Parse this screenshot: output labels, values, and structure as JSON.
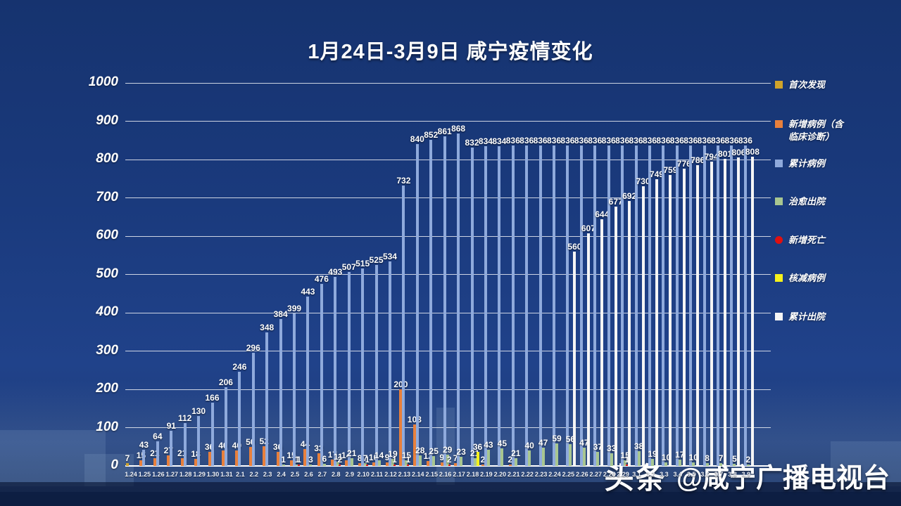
{
  "page": {
    "title": "1月24日-3月9日 咸宁疫情变化"
  },
  "watermark": {
    "brand": "头条",
    "handle": "@咸宁广播电视台"
  },
  "colors": {
    "background": "#1a3a7d",
    "grid": "#ffffff",
    "text": "#ffffff"
  },
  "chart_data": {
    "type": "bar",
    "title": "1月24日-3月9日 咸宁疫情变化",
    "xlabel": "",
    "ylabel": "",
    "ylim": [
      0,
      1000
    ],
    "yticks": [
      1000,
      900,
      800,
      700,
      600,
      500,
      400,
      300,
      200,
      100,
      0
    ],
    "grid": "horizontal",
    "legend_position": "right",
    "series": [
      {
        "key": "first",
        "label": "首次发现",
        "color": "#CFA32B",
        "shape": "square"
      },
      {
        "key": "new",
        "label": "新增病例（含临床诊断）",
        "color": "#E8803C",
        "shape": "square"
      },
      {
        "key": "cum",
        "label": "累计病例",
        "color": "#8FAADC",
        "shape": "square"
      },
      {
        "key": "cured",
        "label": "治愈出院",
        "color": "#A8C690",
        "shape": "square"
      },
      {
        "key": "death",
        "label": "新增死亡",
        "color": "#E01010",
        "shape": "round"
      },
      {
        "key": "reduce",
        "label": "核减病例",
        "color": "#F5F11C",
        "shape": "square"
      },
      {
        "key": "disch",
        "label": "累计出院",
        "color": "#F5F5F5",
        "shape": "square"
      }
    ],
    "points": [
      {
        "date": "1.24",
        "first": 7
      },
      {
        "date": "1.25",
        "new": 15,
        "cum": 43
      },
      {
        "date": "1.26",
        "new": 21,
        "cum": 64
      },
      {
        "date": "1.27",
        "new": 27,
        "cum": 91
      },
      {
        "date": "1.28",
        "new": 21,
        "cum": 112
      },
      {
        "date": "1.29",
        "new": 18,
        "cum": 130
      },
      {
        "date": "1.30",
        "new": 36,
        "cum": 166
      },
      {
        "date": "1.31",
        "new": 40,
        "cum": 206
      },
      {
        "date": "2.1",
        "new": 40,
        "cum": 246
      },
      {
        "date": "2.2",
        "new": 50,
        "cum": 296
      },
      {
        "date": "2.3",
        "new": 52,
        "cum": 348
      },
      {
        "date": "2.4",
        "new": 36,
        "cum": 384,
        "cured": 1
      },
      {
        "date": "2.5",
        "new": 15,
        "cum": 399,
        "cured": 1,
        "death": 1
      },
      {
        "date": "2.6",
        "new": 44,
        "cum": 443,
        "cured": 3
      },
      {
        "date": "2.7",
        "new": 33,
        "cum": 476,
        "cured": 6
      },
      {
        "date": "2.8",
        "new": 17,
        "cum": 493,
        "cured": 11,
        "death": 2
      },
      {
        "date": "2.9",
        "new": 14,
        "cum": 507,
        "cured": 21
      },
      {
        "date": "2.10",
        "new": 8,
        "cum": 515,
        "cured": 7,
        "death": 1
      },
      {
        "date": "2.11",
        "new": 10,
        "cum": 525,
        "cured": 14
      },
      {
        "date": "2.12",
        "new": 9,
        "cum": 534,
        "cured": 19,
        "death": 1
      },
      {
        "date": "2.13",
        "new": 200,
        "cum": 732,
        "cured": 15,
        "death": 1
      },
      {
        "date": "2.14",
        "new": 108,
        "cum": 840,
        "cured": 28
      },
      {
        "date": "2.15",
        "new": 12,
        "cum": 852,
        "cured": 25
      },
      {
        "date": "2.16",
        "new": 9,
        "cum": 861,
        "cured": 29,
        "death": 2
      },
      {
        "date": "2.17",
        "new": 7,
        "cum": 868,
        "cured": 23
      },
      {
        "date": "2.18",
        "cum": 832,
        "cured": 21,
        "reduce": 36
      },
      {
        "date": "2.19",
        "new": 2,
        "cum": 834,
        "cured": 43
      },
      {
        "date": "2.20",
        "cum": 834,
        "cured": 45
      },
      {
        "date": "2.21",
        "new": 2,
        "cum": 836,
        "cured": 21
      },
      {
        "date": "2.22",
        "cum": 836,
        "cured": 40
      },
      {
        "date": "2.23",
        "cum": 836,
        "cured": 47
      },
      {
        "date": "2.24",
        "cum": 836,
        "cured": 59
      },
      {
        "date": "2.25",
        "cum": 836,
        "cured": 56,
        "disch": 560
      },
      {
        "date": "2.26",
        "cum": 836,
        "cured": 47,
        "disch": 607
      },
      {
        "date": "2.27",
        "cum": 836,
        "cured": 37,
        "disch": 644
      },
      {
        "date": "2.28",
        "cum": 836,
        "cured": 33,
        "disch": 677
      },
      {
        "date": "2.29",
        "cum": 836,
        "cured": 15,
        "death": 1,
        "disch": 692
      },
      {
        "date": "3.1",
        "cum": 836,
        "cured": 38,
        "disch": 730
      },
      {
        "date": "3.2",
        "cum": 836,
        "cured": 19,
        "disch": 749
      },
      {
        "date": "3.3",
        "cum": 836,
        "cured": 10,
        "disch": 759
      },
      {
        "date": "3.4",
        "cum": 836,
        "cured": 17,
        "disch": 776
      },
      {
        "date": "3.5",
        "cum": 836,
        "cured": 10,
        "disch": 786
      },
      {
        "date": "3.6",
        "cum": 836,
        "cured": 8,
        "disch": 794
      },
      {
        "date": "3.7",
        "cum": 836,
        "cured": 7,
        "disch": 801
      },
      {
        "date": "3.8",
        "cum": 836,
        "cured": 5,
        "disch": 806
      },
      {
        "date": "3.9",
        "cum": 836,
        "cured": 2,
        "disch": 808
      }
    ]
  }
}
